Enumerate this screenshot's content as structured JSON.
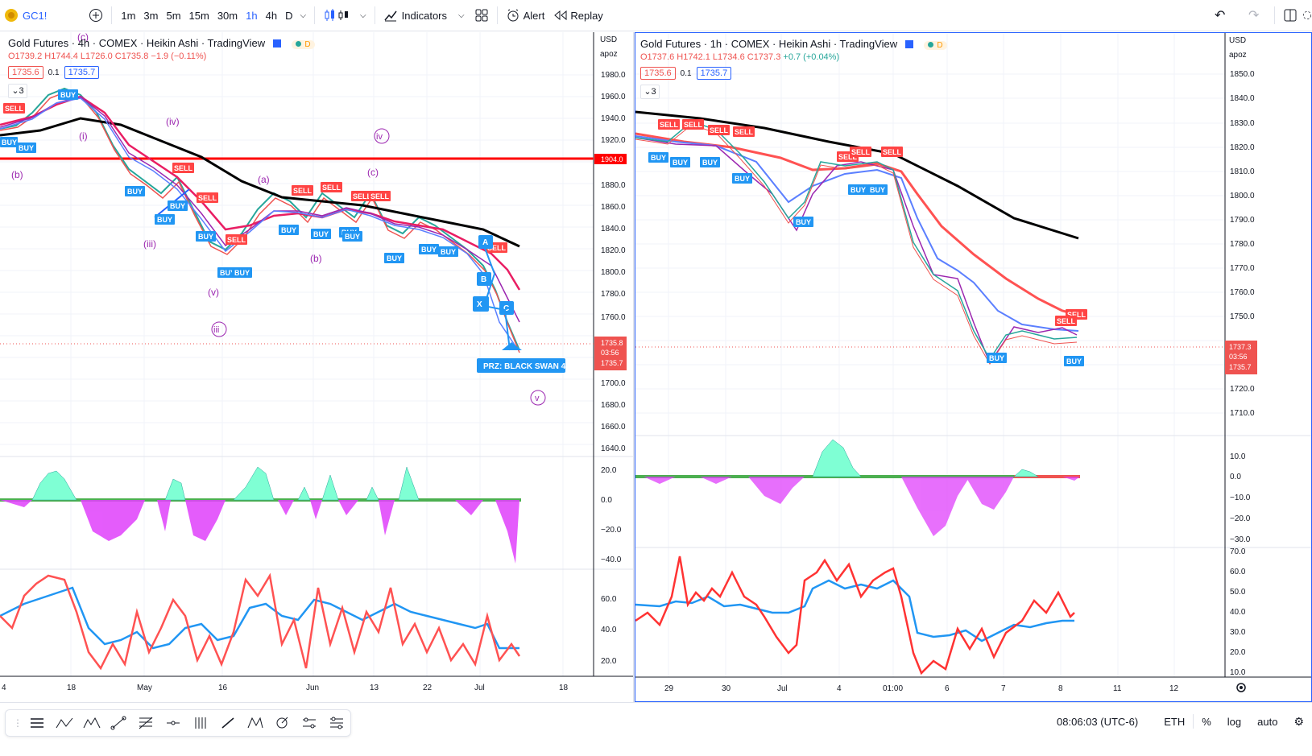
{
  "toolbar": {
    "symbol": "GC1!",
    "intervals": [
      "1m",
      "3m",
      "5m",
      "15m",
      "30m",
      "1h",
      "4h",
      "D"
    ],
    "active_interval": "1h",
    "indicators_label": "Indicators",
    "alert_label": "Alert",
    "replay_label": "Replay"
  },
  "left_chart": {
    "title": "Gold Futures · 4h · COMEX · Heikin Ashi · TradingView",
    "d_badge": "D",
    "ohlc": {
      "o": "O1739.2",
      "h": "H1744.4",
      "l": "L1726.0",
      "c": "C1735.8",
      "chg": "−1.9 (−0.11%)"
    },
    "bid": "1735.6",
    "spread": "0.1",
    "ask": "1735.7",
    "collapse": "3",
    "currency": "USD",
    "scale_mode": "apoz",
    "price_axis": [
      "1980.0",
      "1960.0",
      "1940.0",
      "1920.0",
      "1880.0",
      "1860.0",
      "1840.0",
      "1820.0",
      "1800.0",
      "1780.0",
      "1760.0",
      "1700.0",
      "1680.0",
      "1660.0",
      "1640.0"
    ],
    "level_tag": "1904.0",
    "last_price": "1735.8",
    "countdown": "03:56",
    "ask_tag": "1735.7",
    "osc_axis": [
      "20.0",
      "0.0",
      "−20.0",
      "−40.0"
    ],
    "rsi_axis": [
      "60.0",
      "40.0",
      "20.0"
    ],
    "time_axis": [
      "4",
      "18",
      "May",
      "16",
      "Jun",
      "13",
      "22",
      "Jul",
      "18"
    ],
    "waves": [
      "(c)",
      "(b)",
      "(i)",
      "(iv)",
      "(iii)",
      "(v)",
      "iii",
      "iv",
      "(a)",
      "(b)",
      "(c)",
      "v"
    ],
    "letters": [
      "A",
      "B",
      "X",
      "C"
    ],
    "prz_label": "PRZ: BLACK SWAN 4",
    "sell": "SELL",
    "buy": "BUY"
  },
  "right_chart": {
    "title": "Gold Futures · 1h · COMEX · Heikin Ashi · TradingView",
    "d_badge": "D",
    "ohlc": {
      "o": "O1737.6",
      "h": "H1742.1",
      "l": "L1734.6",
      "c": "C1737.3",
      "chg": "+0.7 (+0.04%)"
    },
    "bid": "1735.6",
    "spread": "0.1",
    "ask": "1735.7",
    "collapse": "3",
    "currency": "USD",
    "scale_mode": "apoz",
    "price_axis": [
      "1850.0",
      "1840.0",
      "1830.0",
      "1820.0",
      "1810.0",
      "1800.0",
      "1790.0",
      "1780.0",
      "1770.0",
      "1760.0",
      "1750.0",
      "1720.0",
      "1710.0"
    ],
    "last_price": "1737.3",
    "countdown": "03:56",
    "ask_tag": "1735.7",
    "osc_axis": [
      "10.0",
      "0.0",
      "−10.0",
      "−20.0",
      "−30.0"
    ],
    "rsi_axis": [
      "70.0",
      "60.0",
      "50.0",
      "40.0",
      "30.0",
      "20.0",
      "10.0"
    ],
    "time_axis": [
      "29",
      "30",
      "Jul",
      "4",
      "01:00",
      "6",
      "7",
      "8",
      "11",
      "12"
    ],
    "sell": "SELL",
    "buy": "BUY"
  },
  "status": {
    "time": "08:06:03 (UTC-6)",
    "session": "ETH",
    "pct": "%",
    "log": "log",
    "auto": "auto"
  }
}
